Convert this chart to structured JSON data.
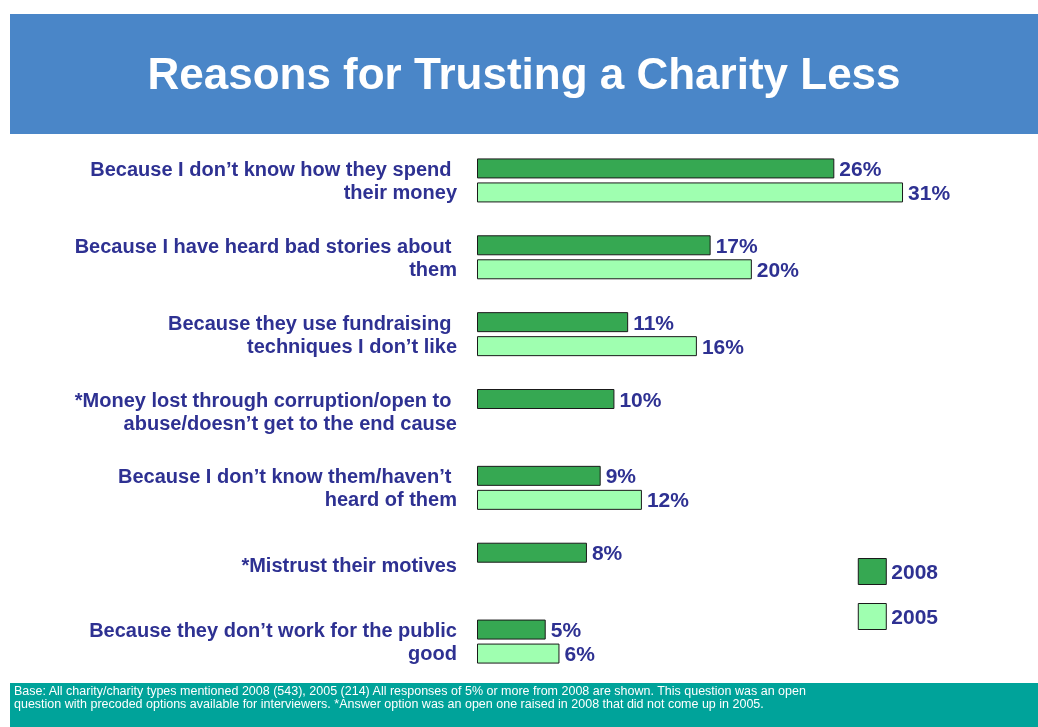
{
  "chart_data": {
    "type": "bar",
    "orientation": "horizontal",
    "title": "Reasons for Trusting a Charity Less",
    "categories": [
      "Because I don’t know how they spend their money",
      "Because I have heard bad stories about them",
      "Because they use fundraising techniques I don’t like",
      "*Money lost through corruption/open to abuse/doesn’t get to the end cause",
      "Because I don’t know them/haven’t heard of them",
      "*Mistrust their motives",
      "Because they don’t work for the public good"
    ],
    "series": [
      {
        "name": "2008",
        "color": "#36a852",
        "values": [
          26,
          17,
          11,
          10,
          9,
          8,
          5
        ],
        "value_labels": [
          "26%",
          "17%",
          "11%",
          "10%",
          "9%",
          "8%",
          "5%"
        ]
      },
      {
        "name": "2005",
        "color": "#9fffb0",
        "values": [
          31,
          20,
          16,
          null,
          12,
          null,
          6
        ],
        "value_labels": [
          "31%",
          "20%",
          "16%",
          null,
          "12%",
          null,
          "6%"
        ]
      }
    ],
    "legend": "bottom right",
    "annotations": [
      "Base: All charity/charity types mentioned 2008 (543), 2005 (214) All responses  of 5% or more from 2008 are shown. This question was an open question with precoded options available for interviewers. *Answer option was an open one raised in 2008 that did not come up in 2005."
    ]
  }
}
